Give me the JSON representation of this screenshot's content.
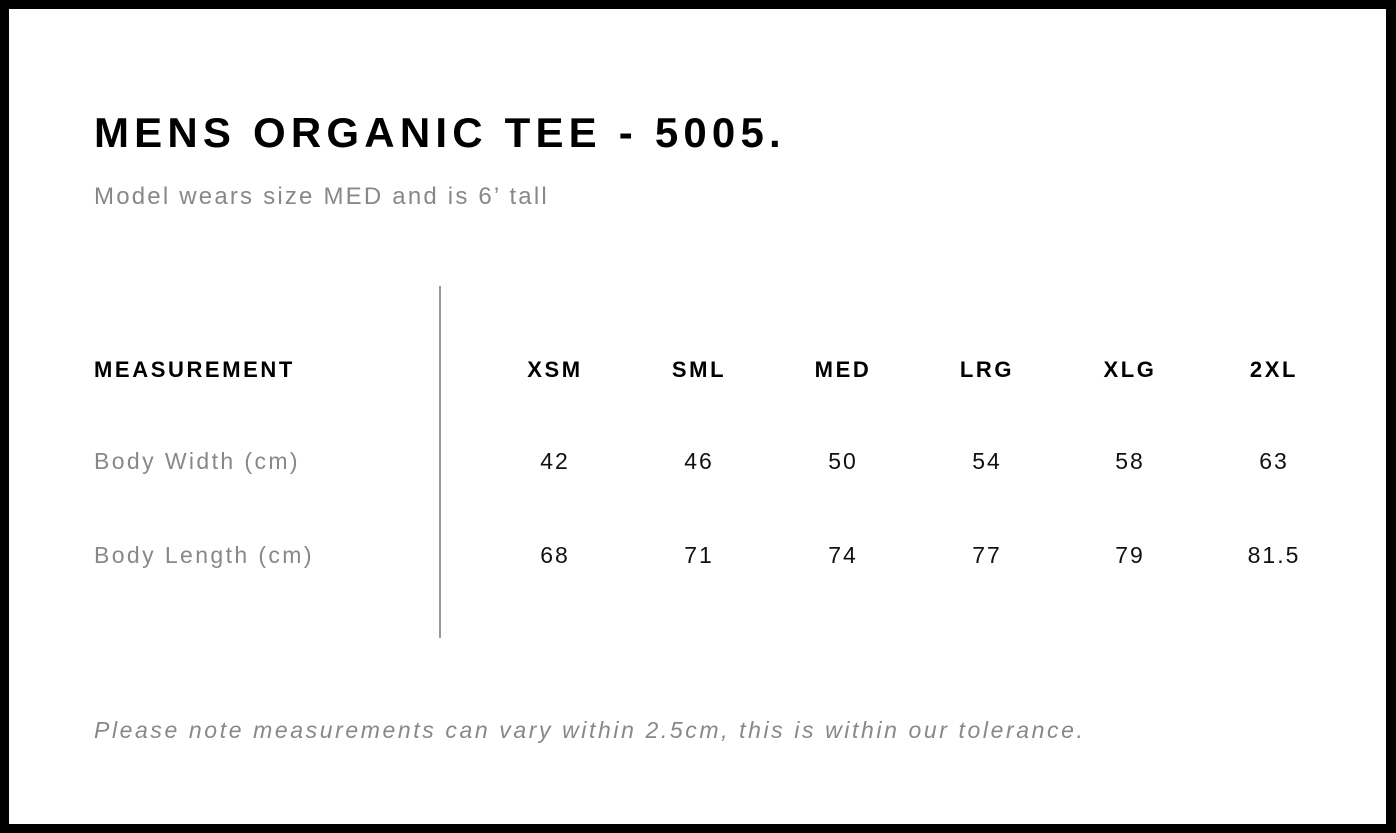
{
  "title": "MENS ORGANIC TEE - 5005.",
  "subtitle": "Model wears size MED and is 6’ tall",
  "table": {
    "header_label": "MEASUREMENT",
    "sizes": [
      "XSM",
      "SML",
      "MED",
      "LRG",
      "XLG",
      "2XL"
    ],
    "rows": [
      {
        "label": "Body Width (cm)",
        "values": [
          "42",
          "46",
          "50",
          "54",
          "58",
          "63"
        ]
      },
      {
        "label": "Body Length (cm)",
        "values": [
          "68",
          "71",
          "74",
          "77",
          "79",
          "81.5"
        ]
      }
    ]
  },
  "note": "Please note measurements can vary within 2.5cm, this is within our tolerance."
}
